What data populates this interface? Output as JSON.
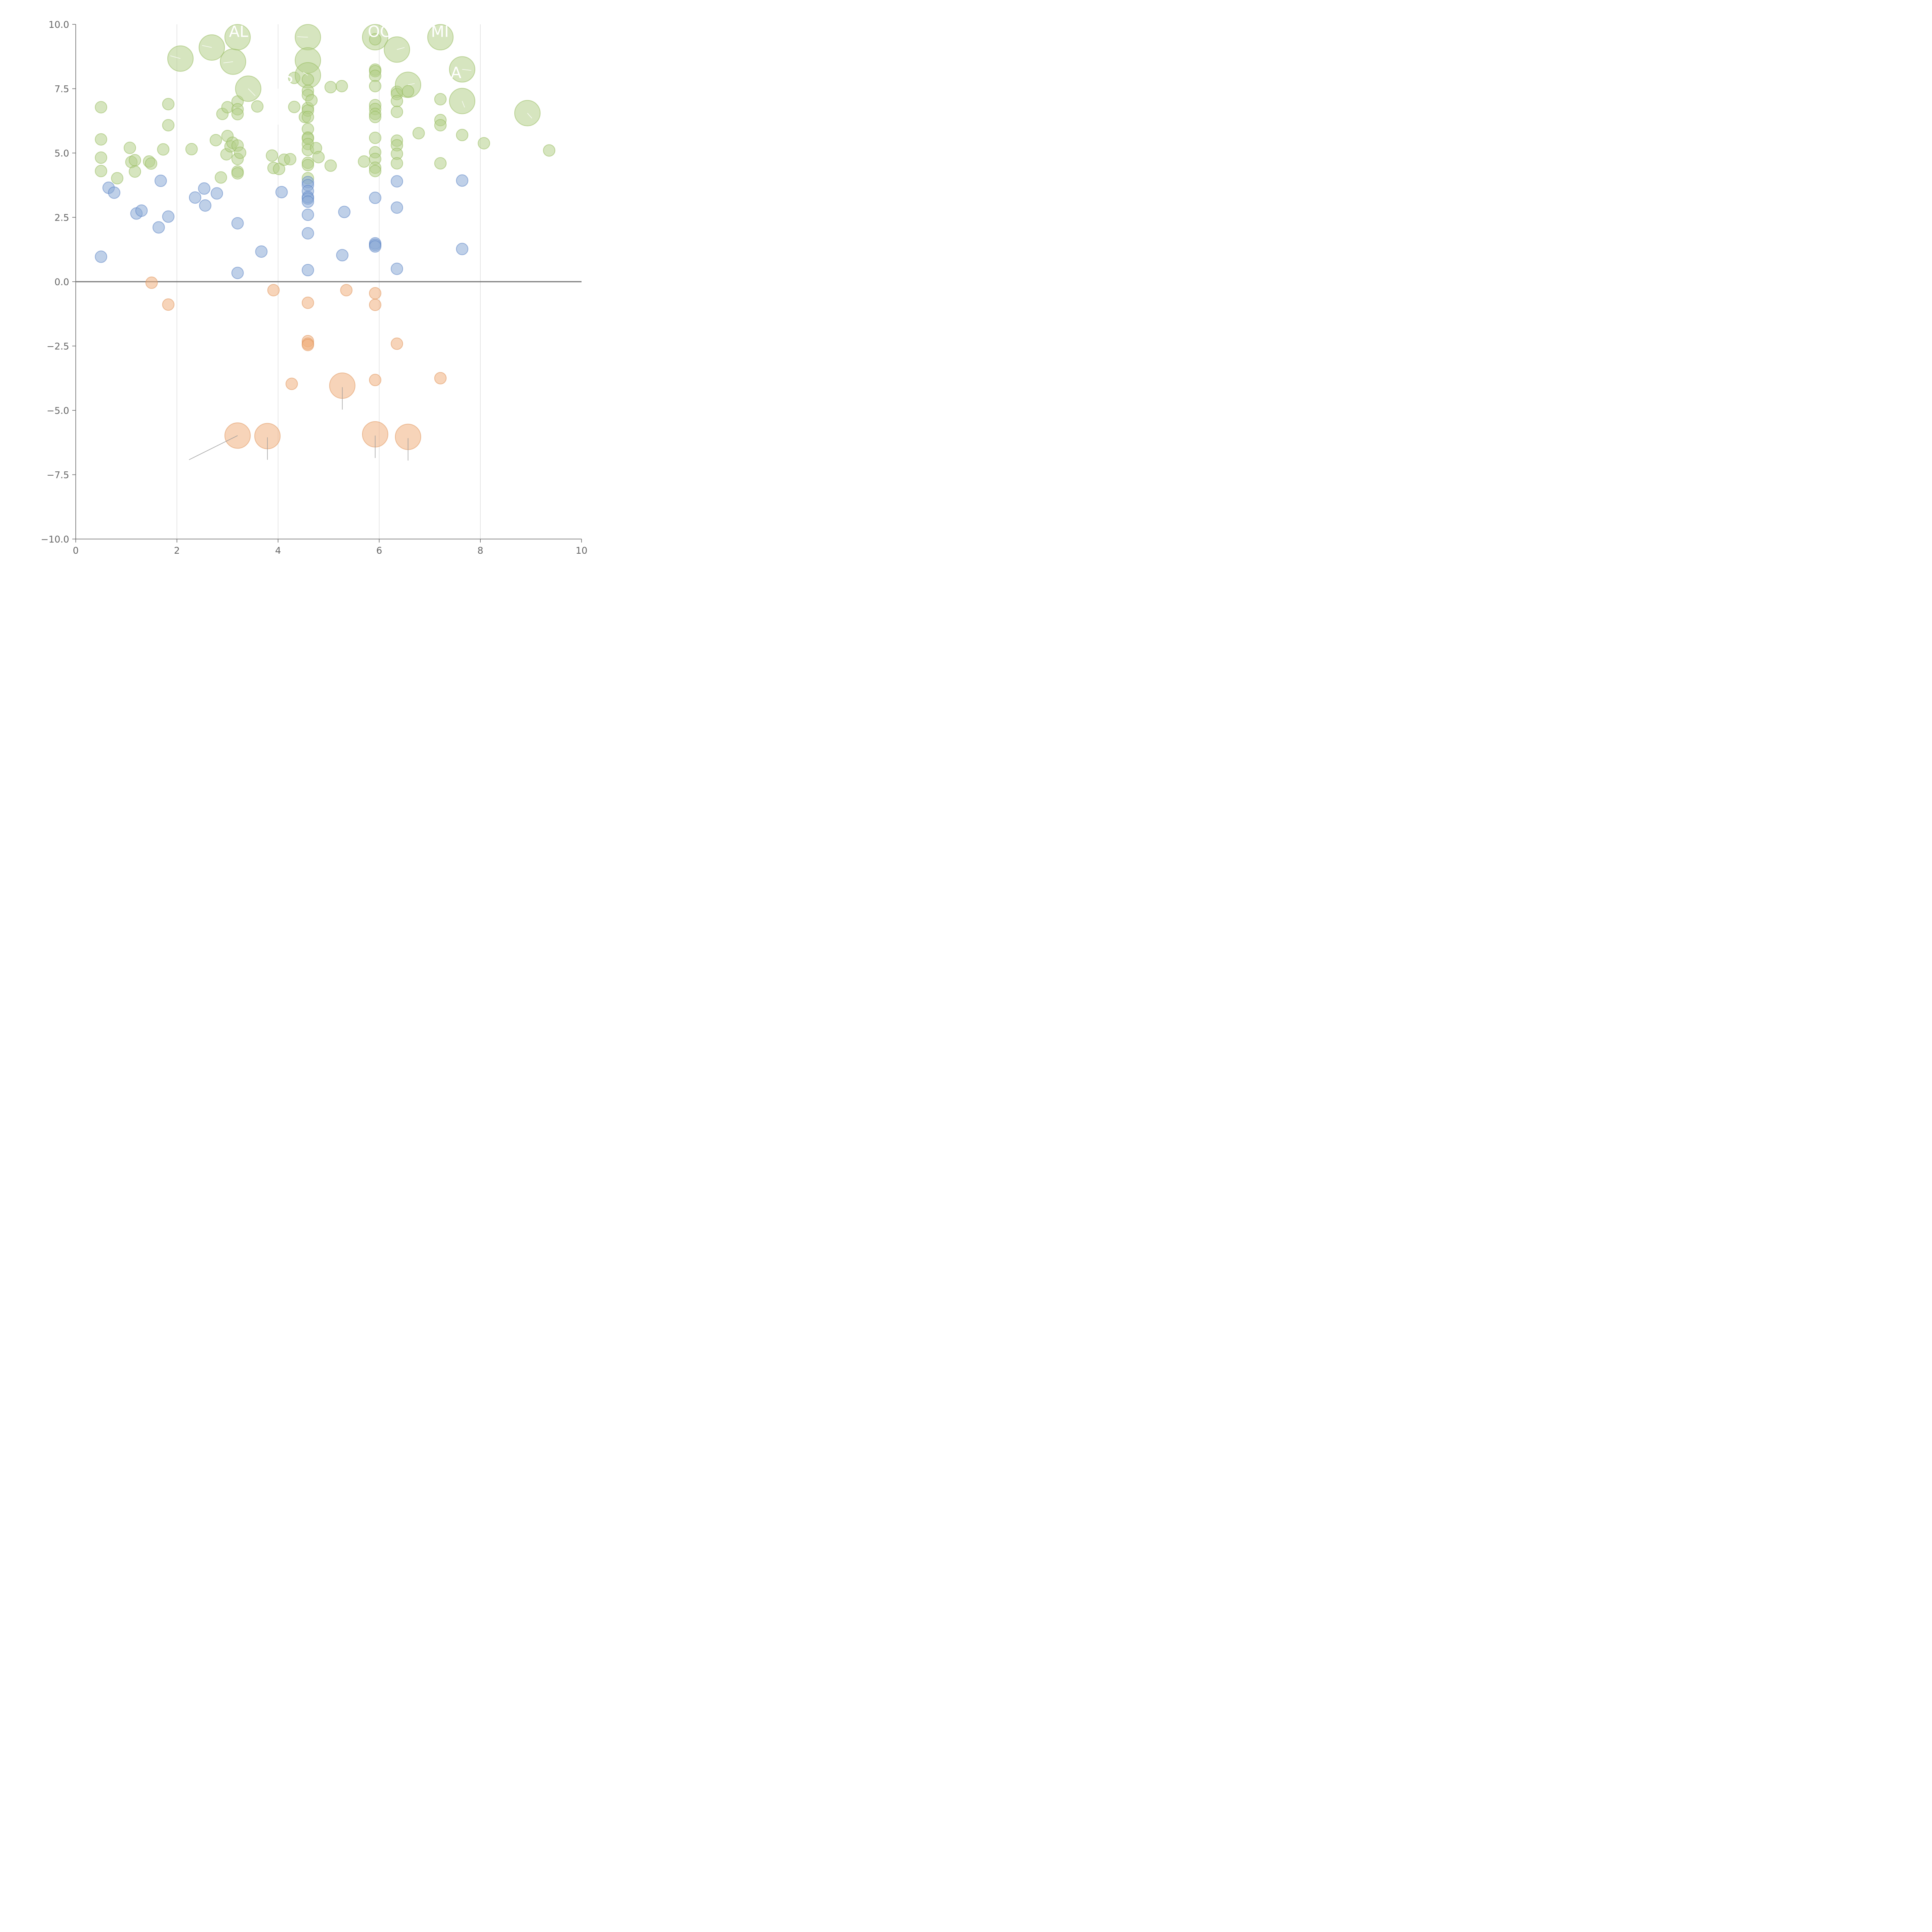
{
  "chart_data": {
    "type": "scatter",
    "subtype": "bubble",
    "title": "",
    "xlabel": "",
    "ylabel": "",
    "xlim": [
      0,
      10
    ],
    "ylim": [
      -10,
      10
    ],
    "x_ticks": [
      0,
      2,
      4,
      6,
      8,
      10
    ],
    "y_ticks": [
      10.0,
      7.5,
      5.0,
      2.5,
      0.0,
      -2.5,
      -5.0,
      -7.5,
      -10.0
    ],
    "x_tick_labels": [
      "0",
      "2",
      "4",
      "6",
      "8",
      "10"
    ],
    "y_tick_labels": [
      "10.0",
      "7.5",
      "5.0",
      "2.5",
      "0.0",
      "−2.5",
      "−5.0",
      "−7.5",
      "−10.0"
    ],
    "vertical_grid_at": [
      2,
      4,
      6,
      8
    ],
    "reference_line_y": 0,
    "colors": {
      "green": "#b5cf8a",
      "green_stroke": "#97bb5e",
      "blue": "#8aa9d6",
      "blue_stroke": "#5b84c4",
      "orange": "#f0b080",
      "orange_stroke": "#e0955d",
      "callout_light": "#ffffff",
      "callout_dark": "#999999"
    },
    "series": [
      {
        "name": "green",
        "color": "#b5cf8a",
        "points": [
          {
            "x": 0.5,
            "y": 6.78,
            "s": 1
          },
          {
            "x": 0.5,
            "y": 5.53,
            "s": 1
          },
          {
            "x": 0.5,
            "y": 4.82,
            "s": 1
          },
          {
            "x": 0.5,
            "y": 4.3,
            "s": 1
          },
          {
            "x": 0.82,
            "y": 4.02,
            "s": 1
          },
          {
            "x": 1.07,
            "y": 5.2,
            "s": 1
          },
          {
            "x": 1.1,
            "y": 4.65,
            "s": 1
          },
          {
            "x": 1.17,
            "y": 4.72,
            "s": 1
          },
          {
            "x": 1.17,
            "y": 4.28,
            "s": 1
          },
          {
            "x": 1.45,
            "y": 4.67,
            "s": 1
          },
          {
            "x": 1.49,
            "y": 4.59,
            "s": 1
          },
          {
            "x": 1.73,
            "y": 5.14,
            "s": 1
          },
          {
            "x": 1.83,
            "y": 6.9,
            "s": 1
          },
          {
            "x": 1.83,
            "y": 6.08,
            "s": 1
          },
          {
            "x": 2.07,
            "y": 8.67,
            "s": 2.2
          },
          {
            "x": 2.29,
            "y": 5.15,
            "s": 1
          },
          {
            "x": 2.69,
            "y": 9.1,
            "s": 2.2
          },
          {
            "x": 2.77,
            "y": 5.5,
            "s": 1
          },
          {
            "x": 2.87,
            "y": 4.05,
            "s": 1
          },
          {
            "x": 2.9,
            "y": 6.52,
            "s": 1
          },
          {
            "x": 2.98,
            "y": 4.95,
            "s": 1
          },
          {
            "x": 3.0,
            "y": 6.78,
            "s": 1
          },
          {
            "x": 3.0,
            "y": 5.66,
            "s": 1
          },
          {
            "x": 3.06,
            "y": 5.26,
            "s": 1
          },
          {
            "x": 3.1,
            "y": 5.4,
            "s": 1
          },
          {
            "x": 3.11,
            "y": 8.55,
            "s": 2.2
          },
          {
            "x": 3.2,
            "y": 9.5,
            "s": 2.2
          },
          {
            "x": 3.2,
            "y": 7.0,
            "s": 1
          },
          {
            "x": 3.2,
            "y": 6.7,
            "s": 1
          },
          {
            "x": 3.2,
            "y": 6.51,
            "s": 1
          },
          {
            "x": 3.2,
            "y": 5.29,
            "s": 1
          },
          {
            "x": 3.2,
            "y": 4.77,
            "s": 1
          },
          {
            "x": 3.2,
            "y": 4.28,
            "s": 1
          },
          {
            "x": 3.2,
            "y": 4.21,
            "s": 1
          },
          {
            "x": 3.25,
            "y": 5.01,
            "s": 1
          },
          {
            "x": 3.41,
            "y": 7.5,
            "s": 2.2
          },
          {
            "x": 3.59,
            "y": 6.81,
            "s": 1
          },
          {
            "x": 3.88,
            "y": 4.9,
            "s": 1
          },
          {
            "x": 3.91,
            "y": 4.42,
            "s": 1
          },
          {
            "x": 4.02,
            "y": 4.38,
            "s": 1
          },
          {
            "x": 4.12,
            "y": 4.74,
            "s": 1
          },
          {
            "x": 4.24,
            "y": 4.76,
            "s": 1
          },
          {
            "x": 4.32,
            "y": 7.92,
            "s": 1
          },
          {
            "x": 4.32,
            "y": 6.79,
            "s": 1
          },
          {
            "x": 4.53,
            "y": 6.4,
            "s": 1
          },
          {
            "x": 4.59,
            "y": 9.5,
            "s": 2.2
          },
          {
            "x": 4.59,
            "y": 8.6,
            "s": 2.2
          },
          {
            "x": 4.59,
            "y": 8.02,
            "s": 2.2
          },
          {
            "x": 4.59,
            "y": 7.86,
            "s": 1
          },
          {
            "x": 4.59,
            "y": 7.42,
            "s": 1
          },
          {
            "x": 4.59,
            "y": 7.25,
            "s": 1
          },
          {
            "x": 4.59,
            "y": 6.75,
            "s": 1
          },
          {
            "x": 4.59,
            "y": 6.65,
            "s": 1
          },
          {
            "x": 4.59,
            "y": 6.4,
            "s": 1
          },
          {
            "x": 4.59,
            "y": 5.93,
            "s": 1
          },
          {
            "x": 4.59,
            "y": 5.6,
            "s": 1
          },
          {
            "x": 4.59,
            "y": 5.56,
            "s": 1
          },
          {
            "x": 4.59,
            "y": 5.35,
            "s": 1
          },
          {
            "x": 4.59,
            "y": 5.12,
            "s": 1
          },
          {
            "x": 4.59,
            "y": 4.62,
            "s": 1
          },
          {
            "x": 4.59,
            "y": 4.53,
            "s": 1
          },
          {
            "x": 4.59,
            "y": 4.02,
            "s": 1
          },
          {
            "x": 4.66,
            "y": 7.05,
            "s": 1
          },
          {
            "x": 4.75,
            "y": 5.19,
            "s": 1
          },
          {
            "x": 4.8,
            "y": 4.84,
            "s": 1
          },
          {
            "x": 5.04,
            "y": 7.56,
            "s": 1
          },
          {
            "x": 5.04,
            "y": 4.51,
            "s": 1
          },
          {
            "x": 5.26,
            "y": 7.6,
            "s": 1
          },
          {
            "x": 5.7,
            "y": 4.67,
            "s": 1
          },
          {
            "x": 5.92,
            "y": 9.5,
            "s": 2.2
          },
          {
            "x": 5.92,
            "y": 9.42,
            "s": 1
          },
          {
            "x": 5.92,
            "y": 8.24,
            "s": 1
          },
          {
            "x": 5.92,
            "y": 8.18,
            "s": 1
          },
          {
            "x": 5.92,
            "y": 8.0,
            "s": 1
          },
          {
            "x": 5.92,
            "y": 7.6,
            "s": 1
          },
          {
            "x": 5.92,
            "y": 6.86,
            "s": 1
          },
          {
            "x": 5.92,
            "y": 6.71,
            "s": 1
          },
          {
            "x": 5.92,
            "y": 6.52,
            "s": 1
          },
          {
            "x": 5.92,
            "y": 6.4,
            "s": 1
          },
          {
            "x": 5.92,
            "y": 5.59,
            "s": 1
          },
          {
            "x": 5.92,
            "y": 5.03,
            "s": 1
          },
          {
            "x": 5.92,
            "y": 4.77,
            "s": 1
          },
          {
            "x": 5.92,
            "y": 4.43,
            "s": 1
          },
          {
            "x": 5.92,
            "y": 4.3,
            "s": 1
          },
          {
            "x": 6.35,
            "y": 9.02,
            "s": 2.2
          },
          {
            "x": 6.35,
            "y": 7.38,
            "s": 1
          },
          {
            "x": 6.35,
            "y": 7.29,
            "s": 1
          },
          {
            "x": 6.35,
            "y": 7.02,
            "s": 1
          },
          {
            "x": 6.35,
            "y": 6.6,
            "s": 1
          },
          {
            "x": 6.35,
            "y": 5.48,
            "s": 1
          },
          {
            "x": 6.35,
            "y": 5.3,
            "s": 1
          },
          {
            "x": 6.35,
            "y": 4.97,
            "s": 1
          },
          {
            "x": 6.35,
            "y": 4.6,
            "s": 1
          },
          {
            "x": 6.57,
            "y": 7.65,
            "s": 2.2
          },
          {
            "x": 6.57,
            "y": 7.4,
            "s": 1
          },
          {
            "x": 6.78,
            "y": 5.77,
            "s": 1
          },
          {
            "x": 7.21,
            "y": 9.5,
            "s": 2.2
          },
          {
            "x": 7.21,
            "y": 7.09,
            "s": 1
          },
          {
            "x": 7.21,
            "y": 6.28,
            "s": 1
          },
          {
            "x": 7.21,
            "y": 6.08,
            "s": 1
          },
          {
            "x": 7.21,
            "y": 4.6,
            "s": 1
          },
          {
            "x": 7.64,
            "y": 8.25,
            "s": 2.2
          },
          {
            "x": 7.64,
            "y": 7.02,
            "s": 2.2
          },
          {
            "x": 7.64,
            "y": 5.7,
            "s": 1
          },
          {
            "x": 8.07,
            "y": 5.38,
            "s": 1
          },
          {
            "x": 8.93,
            "y": 6.55,
            "s": 2.2
          },
          {
            "x": 9.36,
            "y": 5.1,
            "s": 1
          }
        ]
      },
      {
        "name": "blue",
        "color": "#8aa9d6",
        "points": [
          {
            "x": 0.5,
            "y": 0.97,
            "s": 1
          },
          {
            "x": 0.65,
            "y": 3.65,
            "s": 1
          },
          {
            "x": 0.76,
            "y": 3.46,
            "s": 1
          },
          {
            "x": 1.2,
            "y": 2.65,
            "s": 1
          },
          {
            "x": 1.3,
            "y": 2.76,
            "s": 1
          },
          {
            "x": 1.64,
            "y": 2.11,
            "s": 1
          },
          {
            "x": 1.68,
            "y": 3.92,
            "s": 1
          },
          {
            "x": 1.83,
            "y": 2.53,
            "s": 1
          },
          {
            "x": 2.36,
            "y": 3.27,
            "s": 1
          },
          {
            "x": 2.54,
            "y": 3.62,
            "s": 1
          },
          {
            "x": 2.56,
            "y": 2.96,
            "s": 1
          },
          {
            "x": 2.79,
            "y": 3.43,
            "s": 1
          },
          {
            "x": 3.2,
            "y": 2.27,
            "s": 1
          },
          {
            "x": 3.2,
            "y": 0.34,
            "s": 1
          },
          {
            "x": 3.67,
            "y": 1.17,
            "s": 1
          },
          {
            "x": 4.07,
            "y": 3.48,
            "s": 1
          },
          {
            "x": 4.59,
            "y": 3.87,
            "s": 1
          },
          {
            "x": 4.59,
            "y": 3.75,
            "s": 1
          },
          {
            "x": 4.59,
            "y": 3.52,
            "s": 1
          },
          {
            "x": 4.59,
            "y": 3.29,
            "s": 1
          },
          {
            "x": 4.59,
            "y": 3.23,
            "s": 1
          },
          {
            "x": 4.59,
            "y": 3.11,
            "s": 1
          },
          {
            "x": 4.59,
            "y": 2.6,
            "s": 1
          },
          {
            "x": 4.59,
            "y": 1.88,
            "s": 1
          },
          {
            "x": 4.59,
            "y": 0.45,
            "s": 1
          },
          {
            "x": 5.27,
            "y": 1.03,
            "s": 1
          },
          {
            "x": 5.31,
            "y": 2.71,
            "s": 1
          },
          {
            "x": 5.92,
            "y": 3.26,
            "s": 1
          },
          {
            "x": 5.92,
            "y": 1.49,
            "s": 1
          },
          {
            "x": 5.92,
            "y": 1.43,
            "s": 1
          },
          {
            "x": 5.92,
            "y": 1.37,
            "s": 1
          },
          {
            "x": 6.35,
            "y": 3.9,
            "s": 1
          },
          {
            "x": 6.35,
            "y": 2.88,
            "s": 1
          },
          {
            "x": 6.35,
            "y": 0.5,
            "s": 1
          },
          {
            "x": 7.64,
            "y": 3.93,
            "s": 1
          },
          {
            "x": 7.64,
            "y": 1.27,
            "s": 1
          }
        ]
      },
      {
        "name": "orange",
        "color": "#f0b080",
        "points": [
          {
            "x": 1.5,
            "y": -0.04,
            "s": 1
          },
          {
            "x": 1.83,
            "y": -0.89,
            "s": 1
          },
          {
            "x": 3.2,
            "y": -5.98,
            "s": 2.2
          },
          {
            "x": 3.79,
            "y": -6.0,
            "s": 2.2
          },
          {
            "x": 3.91,
            "y": -0.33,
            "s": 1
          },
          {
            "x": 4.27,
            "y": -3.97,
            "s": 1
          },
          {
            "x": 4.59,
            "y": -0.82,
            "s": 1
          },
          {
            "x": 4.59,
            "y": -2.31,
            "s": 1
          },
          {
            "x": 4.59,
            "y": -2.41,
            "s": 1
          },
          {
            "x": 4.59,
            "y": -2.46,
            "s": 1
          },
          {
            "x": 5.27,
            "y": -4.04,
            "s": 2.2
          },
          {
            "x": 5.35,
            "y": -0.33,
            "s": 1
          },
          {
            "x": 5.92,
            "y": -0.45,
            "s": 1
          },
          {
            "x": 5.92,
            "y": -0.9,
            "s": 1
          },
          {
            "x": 5.92,
            "y": -3.82,
            "s": 1
          },
          {
            "x": 5.92,
            "y": -5.93,
            "s": 2.2
          },
          {
            "x": 6.35,
            "y": -2.41,
            "s": 1
          },
          {
            "x": 6.57,
            "y": -6.03,
            "s": 2.2
          },
          {
            "x": 7.21,
            "y": -3.75,
            "s": 1
          }
        ]
      }
    ],
    "annotations": [
      {
        "text": "AL",
        "x": 3.22,
        "y": 9.72
      },
      {
        "text": "OC",
        "x": 6.0,
        "y": 9.72
      },
      {
        "text": "MI",
        "x": 7.2,
        "y": 9.72
      },
      {
        "text": "S",
        "x": 4.2,
        "y": 7.95
      },
      {
        "text": "A",
        "x": 7.52,
        "y": 8.12
      }
    ],
    "callouts": [
      {
        "x1": 3.2,
        "y1": -5.98,
        "x2": 2.24,
        "y2": -6.92,
        "tone": "dark"
      },
      {
        "x1": 3.79,
        "y1": -6.05,
        "x2": 3.79,
        "y2": -6.92,
        "tone": "dark"
      },
      {
        "x1": 5.27,
        "y1": -4.1,
        "x2": 5.27,
        "y2": -4.97,
        "tone": "dark"
      },
      {
        "x1": 5.92,
        "y1": -5.98,
        "x2": 5.92,
        "y2": -6.85,
        "tone": "dark"
      },
      {
        "x1": 6.57,
        "y1": -6.08,
        "x2": 6.57,
        "y2": -6.95,
        "tone": "dark"
      },
      {
        "x1": 2.07,
        "y1": 8.67,
        "x2": 1.87,
        "y2": 8.78,
        "tone": "light"
      },
      {
        "x1": 2.69,
        "y1": 9.1,
        "x2": 2.5,
        "y2": 9.18,
        "tone": "light"
      },
      {
        "x1": 3.11,
        "y1": 8.55,
        "x2": 2.92,
        "y2": 8.5,
        "tone": "light"
      },
      {
        "x1": 4.59,
        "y1": 9.5,
        "x2": 4.38,
        "y2": 9.52,
        "tone": "light"
      },
      {
        "x1": 3.41,
        "y1": 7.5,
        "x2": 3.55,
        "y2": 7.22,
        "tone": "light"
      },
      {
        "x1": 4.59,
        "y1": 8.02,
        "x2": 4.5,
        "y2": 8.14,
        "tone": "light"
      },
      {
        "x1": 6.35,
        "y1": 9.02,
        "x2": 6.5,
        "y2": 9.1,
        "tone": "light"
      },
      {
        "x1": 6.57,
        "y1": 7.65,
        "x2": 6.7,
        "y2": 7.7,
        "tone": "light"
      },
      {
        "x1": 7.64,
        "y1": 8.25,
        "x2": 7.82,
        "y2": 8.21,
        "tone": "light"
      },
      {
        "x1": 7.64,
        "y1": 7.02,
        "x2": 7.69,
        "y2": 6.77,
        "tone": "light"
      },
      {
        "x1": 8.93,
        "y1": 6.55,
        "x2": 9.02,
        "y2": 6.35,
        "tone": "light"
      },
      {
        "x1": 4.0,
        "y1": 7.5,
        "x2": 4.0,
        "y2": 6.1,
        "tone": "light"
      }
    ]
  }
}
